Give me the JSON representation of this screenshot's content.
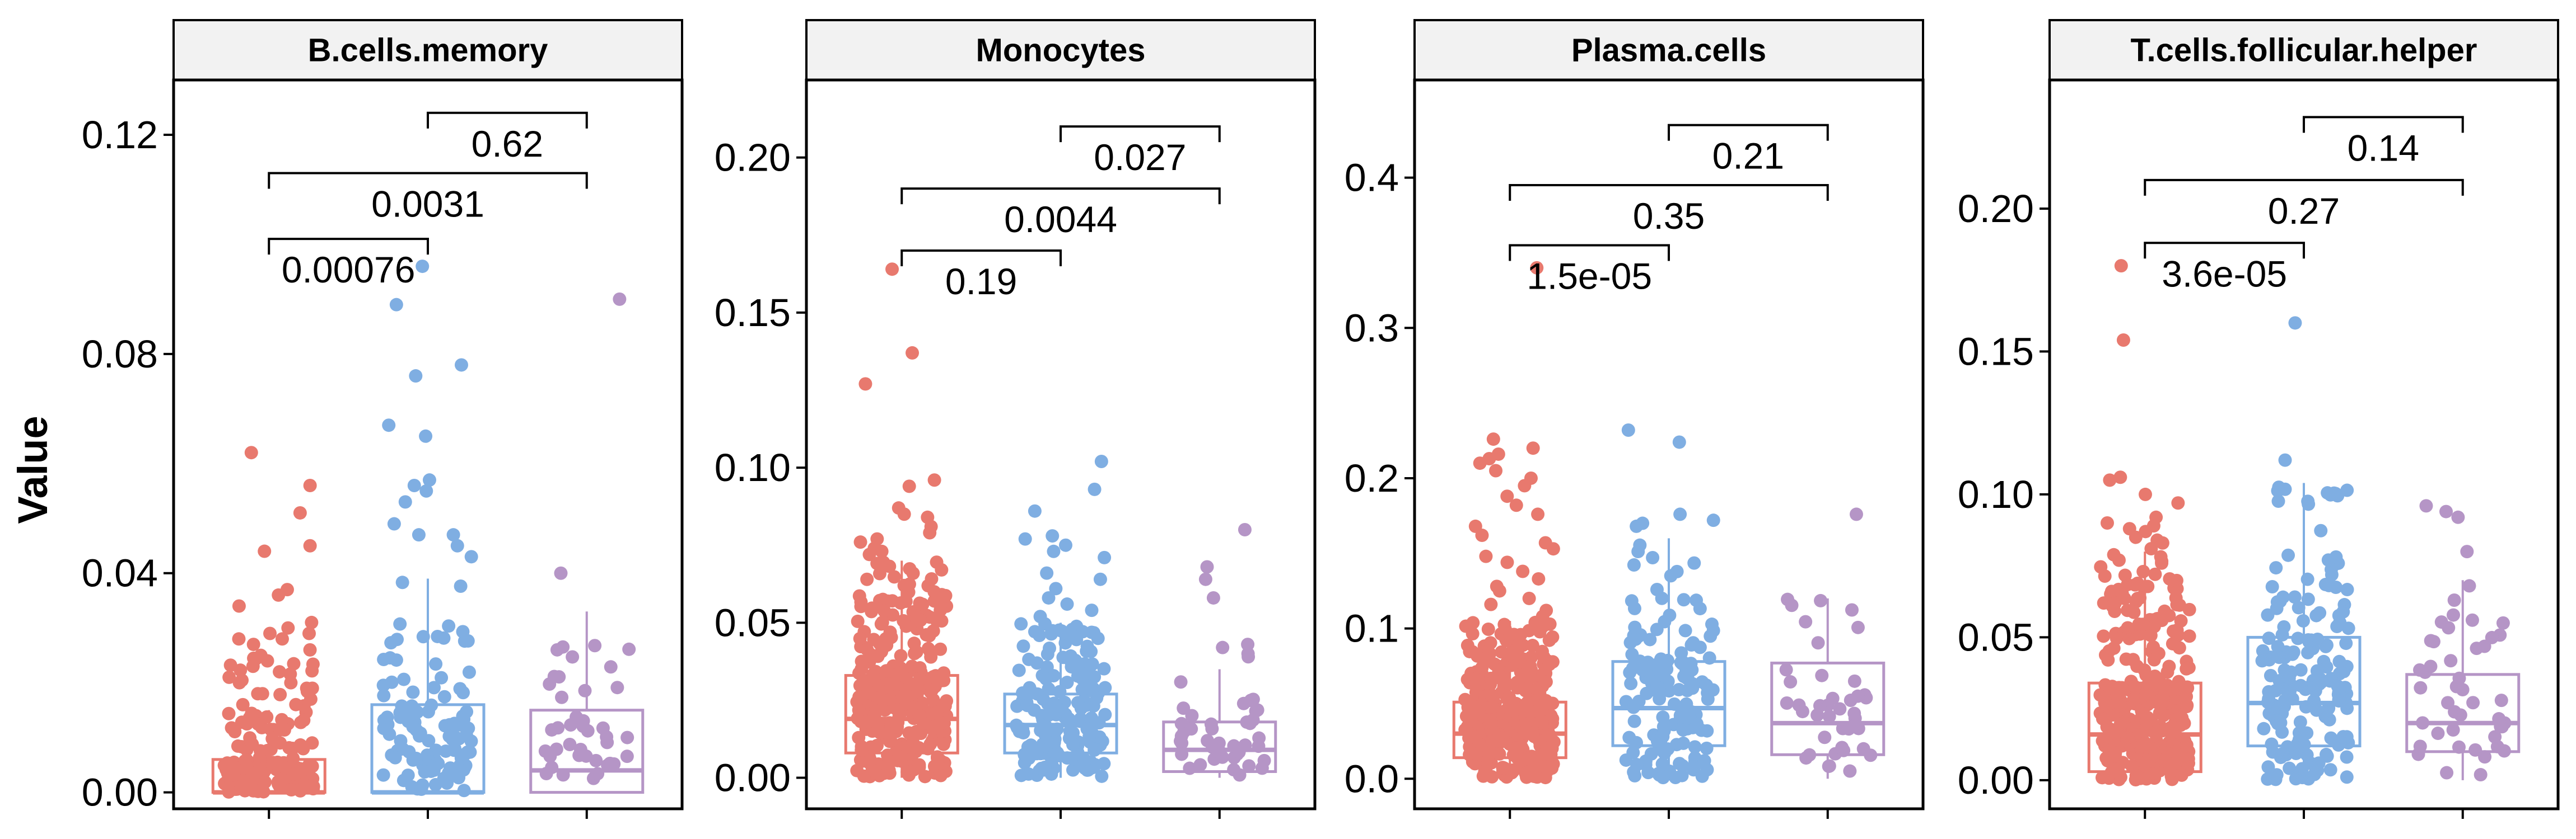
{
  "chart_data": {
    "type": "boxplot-jitter",
    "ylabel": "Value",
    "group_colors": [
      "#E8796E",
      "#7FAEE2",
      "#B595C6"
    ],
    "panels": [
      {
        "title": "B.cells.memory",
        "ylim": [
          -0.003,
          0.13
        ],
        "yticks": [
          0.0,
          0.04,
          0.08,
          0.12
        ],
        "yticklabels": [
          "0.00",
          "0.04",
          "0.08",
          "0.12"
        ],
        "boxes": [
          {
            "q1": 0.0,
            "median": 0.0,
            "q3": 0.006,
            "whisker_low": 0.0,
            "whisker_high": 0.015,
            "count": 160,
            "dense": 0.025,
            "outliers": [
              0.062,
              0.056,
              0.051,
              0.045,
              0.044,
              0.037,
              0.036,
              0.034,
              0.031,
              0.03,
              0.029,
              0.029,
              0.028,
              0.028,
              0.027,
              0.026,
              0.025,
              0.024,
              0.023,
              0.022,
              0.021,
              0.02,
              0.02,
              0.019,
              0.018,
              0.018,
              0.017,
              0.016
            ]
          },
          {
            "q1": 0.0,
            "median": 0.0,
            "q3": 0.016,
            "whisker_low": 0.0,
            "whisker_high": 0.039,
            "count": 110,
            "dense": 0.03,
            "outliers": [
              0.096,
              0.089,
              0.078,
              0.076,
              0.067,
              0.065,
              0.057,
              0.056,
              0.055,
              0.053,
              0.049,
              0.047,
              0.047,
              0.045,
              0.043
            ]
          },
          {
            "q1": 0.0,
            "median": 0.004,
            "q3": 0.015,
            "whisker_low": 0.0,
            "whisker_high": 0.033,
            "count": 40,
            "dense": 0.03,
            "outliers": [
              0.09,
              0.04
            ]
          }
        ],
        "comparisons": [
          {
            "from": 0,
            "to": 1,
            "y": 0.101,
            "label": "0.00076"
          },
          {
            "from": 0,
            "to": 2,
            "y": 0.113,
            "label": "0.0031"
          },
          {
            "from": 1,
            "to": 2,
            "y": 0.124,
            "label": "0.62"
          }
        ]
      },
      {
        "title": "Monocytes",
        "ylim": [
          -0.01,
          0.225
        ],
        "yticks": [
          0.0,
          0.05,
          0.1,
          0.15,
          0.2
        ],
        "yticklabels": [
          "0.00",
          "0.05",
          "0.10",
          "0.15",
          "0.20"
        ],
        "boxes": [
          {
            "q1": 0.008,
            "median": 0.019,
            "q3": 0.033,
            "whisker_low": 0.0,
            "whisker_high": 0.07,
            "count": 320,
            "dense": 0.06,
            "outliers": [
              0.164,
              0.137,
              0.127,
              0.096,
              0.094,
              0.087,
              0.085,
              0.084,
              0.081,
              0.079,
              0.077,
              0.076,
              0.074,
              0.073,
              0.072
            ]
          },
          {
            "q1": 0.008,
            "median": 0.017,
            "q3": 0.027,
            "whisker_low": 0.0,
            "whisker_high": 0.05,
            "count": 180,
            "dense": 0.05,
            "outliers": [
              0.102,
              0.093,
              0.086,
              0.078,
              0.077,
              0.075,
              0.073,
              0.071,
              0.066,
              0.064,
              0.061,
              0.058,
              0.056,
              0.054,
              0.052
            ]
          },
          {
            "q1": 0.002,
            "median": 0.009,
            "q3": 0.018,
            "whisker_low": 0.0,
            "whisker_high": 0.035,
            "count": 40,
            "dense": 0.03,
            "outliers": [
              0.08,
              0.068,
              0.064,
              0.058,
              0.043,
              0.042,
              0.04,
              0.039
            ]
          }
        ],
        "comparisons": [
          {
            "from": 0,
            "to": 1,
            "y": 0.17,
            "label": "0.19"
          },
          {
            "from": 0,
            "to": 2,
            "y": 0.19,
            "label": "0.0044"
          },
          {
            "from": 1,
            "to": 2,
            "y": 0.21,
            "label": "0.027"
          }
        ]
      },
      {
        "title": "Plasma.cells",
        "ylim": [
          -0.02,
          0.465
        ],
        "yticks": [
          0.0,
          0.1,
          0.2,
          0.3,
          0.4
        ],
        "yticklabels": [
          "0.0",
          "0.1",
          "0.2",
          "0.3",
          "0.4"
        ],
        "boxes": [
          {
            "q1": 0.014,
            "median": 0.03,
            "q3": 0.051,
            "whisker_low": 0.0,
            "whisker_high": 0.105,
            "count": 330,
            "dense": 0.09,
            "outliers": [
              0.34,
              0.226,
              0.22,
              0.216,
              0.213,
              0.21,
              0.205,
              0.2,
              0.195,
              0.188,
              0.182,
              0.176,
              0.168,
              0.162,
              0.157,
              0.153,
              0.148,
              0.144,
              0.138,
              0.133,
              0.128,
              0.125,
              0.12,
              0.116,
              0.112,
              0.108
            ]
          },
          {
            "q1": 0.022,
            "median": 0.047,
            "q3": 0.078,
            "whisker_low": 0.0,
            "whisker_high": 0.16,
            "count": 150,
            "dense": 0.12,
            "outliers": [
              0.232,
              0.224,
              0.176,
              0.172,
              0.17,
              0.168
            ]
          },
          {
            "q1": 0.016,
            "median": 0.037,
            "q3": 0.077,
            "whisker_low": 0.0,
            "whisker_high": 0.12,
            "count": 40,
            "dense": 0.1,
            "outliers": [
              0.176
            ]
          }
        ],
        "comparisons": [
          {
            "from": 0,
            "to": 1,
            "y": 0.355,
            "label": "1.5e-05"
          },
          {
            "from": 0,
            "to": 2,
            "y": 0.395,
            "label": "0.35"
          },
          {
            "from": 1,
            "to": 2,
            "y": 0.435,
            "label": "0.21"
          }
        ]
      },
      {
        "title": "T.cells.follicular.helper",
        "ylim": [
          -0.01,
          0.245
        ],
        "yticks": [
          0.0,
          0.05,
          0.1,
          0.15,
          0.2
        ],
        "yticklabels": [
          "0.00",
          "0.05",
          "0.10",
          "0.15",
          "0.20"
        ],
        "boxes": [
          {
            "q1": 0.003,
            "median": 0.016,
            "q3": 0.034,
            "whisker_low": 0.0,
            "whisker_high": 0.08,
            "count": 330,
            "dense": 0.07,
            "outliers": [
              0.18,
              0.154,
              0.106,
              0.105,
              0.1,
              0.097,
              0.092,
              0.09,
              0.089,
              0.088,
              0.087,
              0.085,
              0.084,
              0.083,
              0.081
            ]
          },
          {
            "q1": 0.012,
            "median": 0.027,
            "q3": 0.05,
            "whisker_low": 0.0,
            "whisker_high": 0.104,
            "count": 170,
            "dense": 0.08,
            "outliers": [
              0.16,
              0.112
            ]
          },
          {
            "q1": 0.01,
            "median": 0.02,
            "q3": 0.037,
            "whisker_low": 0.0,
            "whisker_high": 0.07,
            "count": 40,
            "dense": 0.05,
            "outliers": [
              0.096,
              0.094,
              0.092,
              0.08,
              0.068,
              0.063,
              0.056,
              0.055
            ]
          }
        ],
        "comparisons": [
          {
            "from": 0,
            "to": 1,
            "y": 0.188,
            "label": "3.6e-05"
          },
          {
            "from": 0,
            "to": 2,
            "y": 0.21,
            "label": "0.27"
          },
          {
            "from": 1,
            "to": 2,
            "y": 0.232,
            "label": "0.14"
          }
        ]
      }
    ]
  }
}
